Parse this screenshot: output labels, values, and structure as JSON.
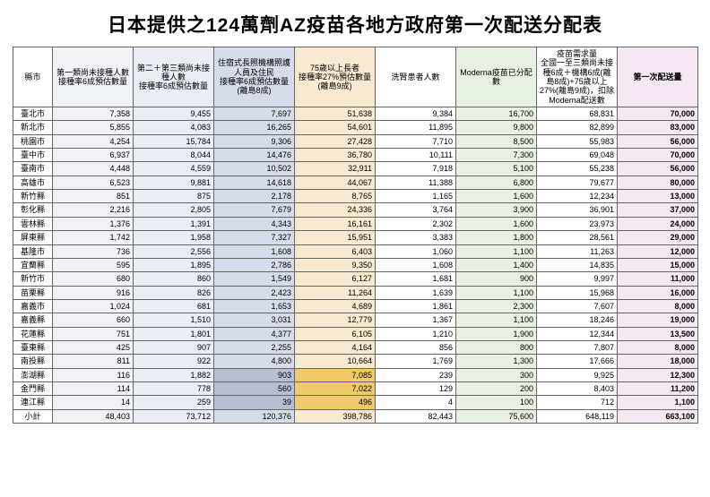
{
  "title": "日本提供之124萬劑AZ疫苗各地方政府第一次配送分配表",
  "columns": [
    {
      "label": "縣市",
      "cls": ""
    },
    {
      "label": "第一類尚未接種人數\n接種率6成預估數量",
      "cls": "bg1"
    },
    {
      "label": "第二＋第三類尚未接種人數\n接種率6成預估數量",
      "cls": "bg2"
    },
    {
      "label": "住宿式長照機構照護人員及住民\n接種率6成預估數量(離島8成)",
      "cls": "bg3"
    },
    {
      "label": "75歲以上長者\n接種率27%預估數量\n(離島9成)",
      "cls": "bg4"
    },
    {
      "label": "洗腎患者人數",
      "cls": "bg5"
    },
    {
      "label": "Moderna疫苗已分配數",
      "cls": "bg6"
    },
    {
      "label": "疫苗需求量\n全國一至三類尚未接種6成＋機構6成(離島8成)+75歲以上27%(離島9成)，扣除Moderna配送數",
      "cls": "bg7"
    },
    {
      "label": "第一次配送量",
      "cls": "bg8"
    }
  ],
  "special": {
    "cities": [
      "澎湖縣",
      "金門縣",
      "連江縣"
    ],
    "col3": "sp3",
    "col4": "sp4"
  },
  "rows": [
    {
      "c": "臺北市",
      "v": [
        "7,358",
        "9,455",
        "7,697",
        "51,638",
        "9,384",
        "16,700",
        "68,831",
        "70,000"
      ]
    },
    {
      "c": "新北市",
      "v": [
        "5,855",
        "4,083",
        "16,265",
        "54,601",
        "11,895",
        "9,800",
        "82,899",
        "83,000"
      ]
    },
    {
      "c": "桃園市",
      "v": [
        "4,254",
        "15,784",
        "9,306",
        "27,428",
        "7,710",
        "8,500",
        "55,983",
        "56,000"
      ]
    },
    {
      "c": "臺中市",
      "v": [
        "6,937",
        "8,044",
        "14,476",
        "36,780",
        "10,111",
        "7,300",
        "69,048",
        "70,000"
      ]
    },
    {
      "c": "臺南市",
      "v": [
        "4,448",
        "4,559",
        "10,502",
        "32,911",
        "7,918",
        "5,100",
        "55,238",
        "56,000"
      ]
    },
    {
      "c": "高雄市",
      "v": [
        "6,523",
        "9,881",
        "14,618",
        "44,067",
        "11,388",
        "6,800",
        "79,677",
        "80,000"
      ]
    },
    {
      "c": "新竹縣",
      "v": [
        "851",
        "875",
        "2,178",
        "8,765",
        "1,165",
        "1,600",
        "12,234",
        "13,000"
      ]
    },
    {
      "c": "彰化縣",
      "v": [
        "2,216",
        "2,805",
        "7,679",
        "24,336",
        "3,764",
        "3,900",
        "36,901",
        "37,000"
      ]
    },
    {
      "c": "雲林縣",
      "v": [
        "1,376",
        "1,391",
        "4,343",
        "16,161",
        "2,302",
        "1,600",
        "23,973",
        "24,000"
      ]
    },
    {
      "c": "屏東縣",
      "v": [
        "1,742",
        "1,958",
        "7,327",
        "15,951",
        "3,383",
        "1,800",
        "28,561",
        "29,000"
      ]
    },
    {
      "c": "基隆市",
      "v": [
        "736",
        "2,556",
        "1,608",
        "6,403",
        "1,060",
        "1,100",
        "11,263",
        "12,000"
      ]
    },
    {
      "c": "宜蘭縣",
      "v": [
        "595",
        "1,895",
        "2,786",
        "9,350",
        "1,608",
        "1,400",
        "14,835",
        "15,000"
      ]
    },
    {
      "c": "新竹市",
      "v": [
        "680",
        "860",
        "1,549",
        "6,127",
        "1,681",
        "900",
        "9,997",
        "11,000"
      ]
    },
    {
      "c": "苗栗縣",
      "v": [
        "916",
        "826",
        "2,423",
        "11,264",
        "1,639",
        "1,100",
        "15,968",
        "16,000"
      ]
    },
    {
      "c": "嘉義市",
      "v": [
        "1,024",
        "681",
        "1,653",
        "4,689",
        "1,861",
        "2,300",
        "7,607",
        "8,000"
      ]
    },
    {
      "c": "嘉義縣",
      "v": [
        "660",
        "1,510",
        "3,031",
        "12,779",
        "1,367",
        "1,100",
        "18,246",
        "19,000"
      ]
    },
    {
      "c": "花蓮縣",
      "v": [
        "751",
        "1,801",
        "4,377",
        "6,105",
        "1,210",
        "1,900",
        "12,344",
        "13,500"
      ]
    },
    {
      "c": "臺東縣",
      "v": [
        "425",
        "907",
        "2,255",
        "4,164",
        "856",
        "800",
        "7,807",
        "8,000"
      ]
    },
    {
      "c": "南投縣",
      "v": [
        "811",
        "922",
        "4,800",
        "10,664",
        "1,769",
        "1,300",
        "17,666",
        "18,000"
      ]
    },
    {
      "c": "澎湖縣",
      "v": [
        "116",
        "1,882",
        "903",
        "7,085",
        "239",
        "300",
        "9,925",
        "12,300"
      ]
    },
    {
      "c": "金門縣",
      "v": [
        "114",
        "778",
        "560",
        "7,022",
        "129",
        "200",
        "8,403",
        "11,200"
      ]
    },
    {
      "c": "連江縣",
      "v": [
        "14",
        "259",
        "39",
        "496",
        "4",
        "100",
        "712",
        "1,100"
      ]
    },
    {
      "c": "小計",
      "v": [
        "48,403",
        "73,712",
        "120,376",
        "398,786",
        "82,443",
        "75,600",
        "648,119",
        "663,100"
      ],
      "subtotal": true
    }
  ]
}
